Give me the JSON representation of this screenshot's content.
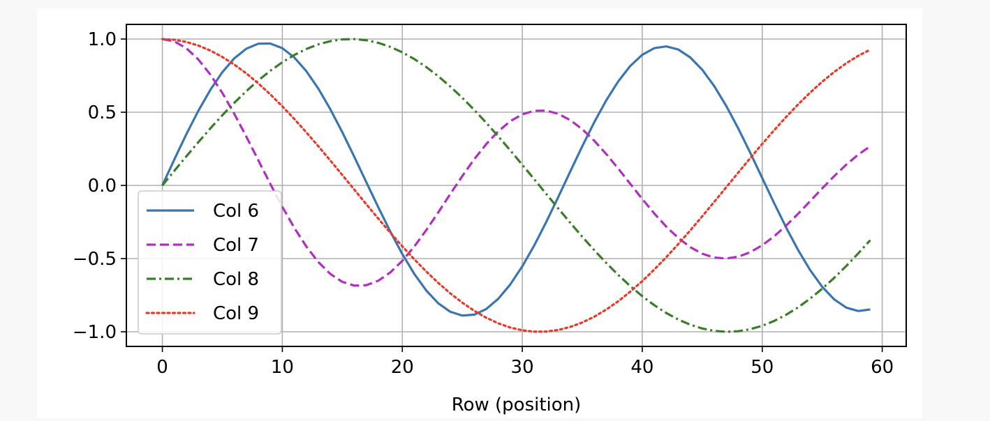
{
  "chart_data": {
    "type": "line",
    "title": "",
    "xlabel": "Row (position)",
    "ylabel": "",
    "xlim": [
      -3,
      62
    ],
    "ylim": [
      -1.1,
      1.1
    ],
    "grid": true,
    "legend_position": "lower-left",
    "x_ticks": [
      "0",
      "10",
      "20",
      "30",
      "40",
      "50",
      "60"
    ],
    "y_ticks": [
      "1.0",
      "0.5",
      "0.0",
      "−0.5",
      "−1.0"
    ],
    "x": [
      0,
      1,
      2,
      3,
      4,
      5,
      6,
      7,
      8,
      9,
      10,
      11,
      12,
      13,
      14,
      15,
      16,
      17,
      18,
      19,
      20,
      21,
      22,
      23,
      24,
      25,
      26,
      27,
      28,
      29,
      30,
      31,
      32,
      33,
      34,
      35,
      36,
      37,
      38,
      39,
      40,
      41,
      42,
      43,
      44,
      45,
      46,
      47,
      48,
      49,
      50,
      51,
      52,
      53,
      54,
      55,
      56,
      57,
      58,
      59
    ],
    "series": [
      {
        "name": "Col 6",
        "color": "#3a75b0",
        "dash": "solid",
        "values": [
          0.0,
          0.1778,
          0.3496,
          0.5098,
          0.6528,
          0.7737,
          0.8686,
          0.9342,
          0.9682,
          0.9693,
          0.9374,
          0.8737,
          0.7805,
          0.6613,
          0.5204,
          0.3631,
          0.195,
          0.022,
          -0.1498,
          -0.3154,
          -0.4689,
          -0.6048,
          -0.7184,
          -0.8056,
          -0.8632,
          -0.8892,
          -0.8828,
          -0.8441,
          -0.7745,
          -0.6764,
          -0.5532,
          -0.4092,
          -0.2493,
          -0.0791,
          0.0954,
          0.2678,
          0.4318,
          0.5814,
          0.711,
          0.816,
          0.8925,
          0.9376,
          0.9498,
          0.9285,
          0.8745,
          0.79,
          0.678,
          0.5428,
          0.3892,
          0.223,
          0.0501,
          -0.1226,
          -0.2891,
          -0.4433,
          -0.5796,
          -0.6929,
          -0.7791,
          -0.8348,
          -0.8579,
          -0.8475
        ]
      },
      {
        "name": "Col 7",
        "color": "#b02fc0",
        "dash": "dashed",
        "values": [
          1.0,
          0.984,
          0.9368,
          0.8602,
          0.7571,
          0.6315,
          0.4883,
          0.333,
          0.1713,
          0.0095,
          -0.1465,
          -0.2905,
          -0.4175,
          -0.5235,
          -0.6048,
          -0.659,
          -0.6847,
          -0.6817,
          -0.6509,
          -0.5944,
          -0.5152,
          -0.4171,
          -0.3049,
          -0.1836,
          -0.0588,
          0.0641,
          0.1794,
          0.2827,
          0.3701,
          0.4385,
          0.4855,
          0.5098,
          0.5108,
          0.4891,
          0.4459,
          0.3836,
          0.3051,
          0.214,
          0.1145,
          0.0107,
          -0.093,
          -0.1917,
          -0.2816,
          -0.3592,
          -0.4216,
          -0.4666,
          -0.4928,
          -0.4995,
          -0.487,
          -0.4562,
          -0.4088,
          -0.3471,
          -0.274,
          -0.1927,
          -0.1068,
          -0.0201,
          0.0637,
          0.1416,
          0.2104,
          0.2675
        ]
      },
      {
        "name": "Col 8",
        "color": "#3a7d28",
        "dash": "dashdot",
        "values": [
          0.0,
          0.1,
          0.1987,
          0.2955,
          0.3894,
          0.4794,
          0.5646,
          0.6442,
          0.7174,
          0.7833,
          0.8415,
          0.8912,
          0.932,
          0.9636,
          0.9854,
          0.9975,
          0.9996,
          0.9917,
          0.9738,
          0.9463,
          0.9093,
          0.8632,
          0.8085,
          0.7457,
          0.6755,
          0.5985,
          0.5155,
          0.4274,
          0.335,
          0.2392,
          0.1411,
          0.0416,
          -0.0584,
          -0.1577,
          -0.2555,
          -0.3508,
          -0.4425,
          -0.5298,
          -0.6119,
          -0.6878,
          -0.7568,
          -0.8183,
          -0.8716,
          -0.9162,
          -0.9516,
          -0.9775,
          -0.9937,
          -0.9999,
          -0.9962,
          -0.9825,
          -0.9589,
          -0.9258,
          -0.8835,
          -0.8323,
          -0.7728,
          -0.7055,
          -0.6313,
          -0.5507,
          -0.4646,
          -0.3739
        ]
      },
      {
        "name": "Col 9",
        "color": "#e8392b",
        "dash": "dotted",
        "values": [
          1.0,
          0.995,
          0.9801,
          0.9553,
          0.9211,
          0.8776,
          0.8253,
          0.7648,
          0.6967,
          0.6216,
          0.5403,
          0.4536,
          0.3624,
          0.2675,
          0.17,
          0.0707,
          -0.0292,
          -0.1288,
          -0.2272,
          -0.3233,
          -0.4161,
          -0.5048,
          -0.5885,
          -0.6663,
          -0.7374,
          -0.8011,
          -0.8569,
          -0.9041,
          -0.9422,
          -0.971,
          -0.99,
          -0.9991,
          -0.9983,
          -0.9875,
          -0.9668,
          -0.9365,
          -0.8968,
          -0.8481,
          -0.791,
          -0.7259,
          -0.6536,
          -0.5748,
          -0.4903,
          -0.4008,
          -0.3073,
          -0.2108,
          -0.1122,
          -0.0124,
          0.0875,
          0.1865,
          0.2837,
          0.378,
          0.4685,
          0.5544,
          0.6347,
          0.7087,
          0.7756,
          0.8347,
          0.8855,
          0.9275
        ]
      }
    ]
  }
}
